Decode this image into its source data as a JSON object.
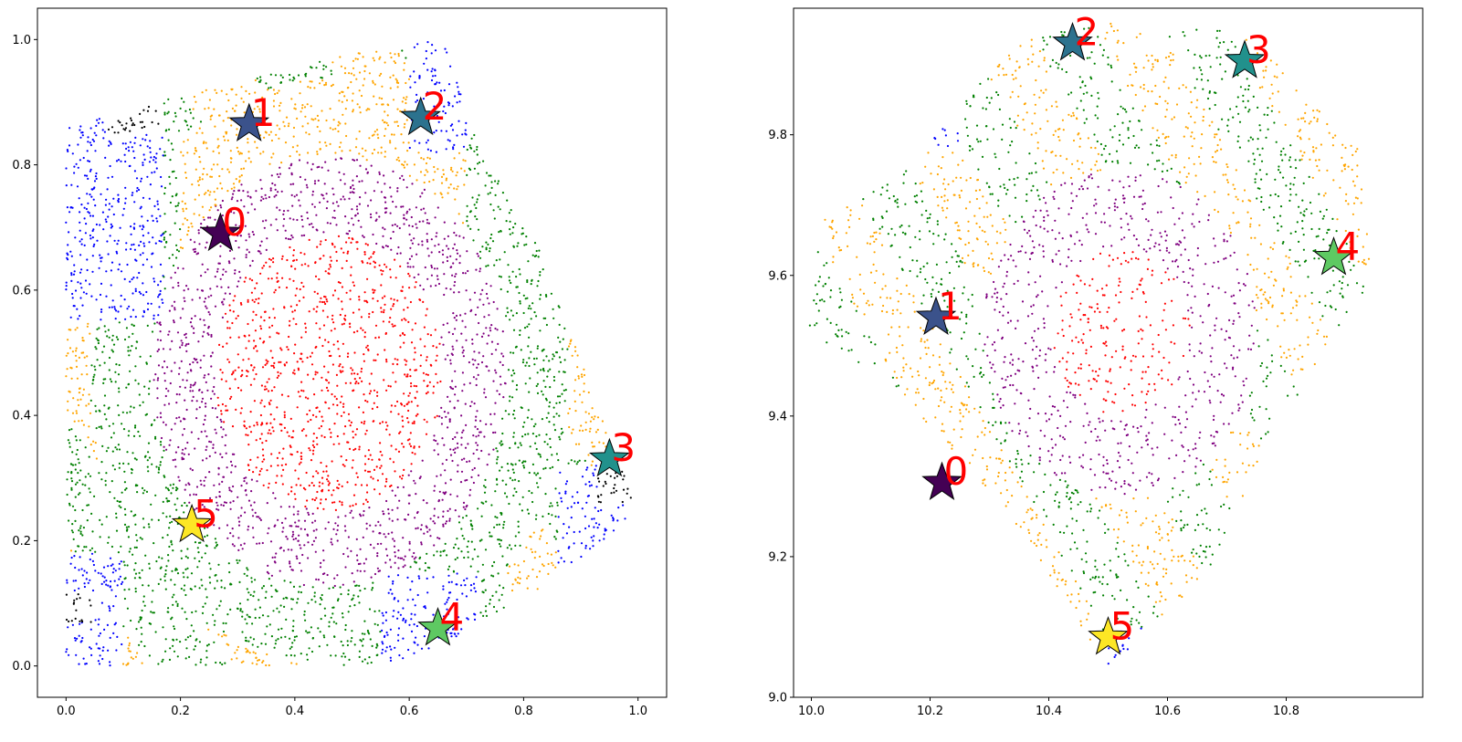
{
  "chart_data": [
    {
      "type": "scatter",
      "title": "",
      "xlabel": "",
      "ylabel": "",
      "xlim": [
        -0.05,
        1.05
      ],
      "ylim": [
        -0.05,
        1.05
      ],
      "xticks": [
        0.0,
        0.2,
        0.4,
        0.6,
        0.8,
        1.0
      ],
      "yticks": [
        0.0,
        0.2,
        0.4,
        0.6,
        0.8,
        1.0
      ],
      "xtick_labels": [
        "0.0",
        "0.2",
        "0.4",
        "0.6",
        "0.8",
        "1.0"
      ],
      "ytick_labels": [
        "0.0",
        "0.2",
        "0.4",
        "0.6",
        "0.8",
        "1.0"
      ],
      "grid": false,
      "point_colors": [
        "#ff0000",
        "#800080",
        "#ffa500",
        "#008000",
        "#0000ff",
        "#000000"
      ],
      "stars": [
        {
          "label": "0",
          "x": 0.27,
          "y": 0.69,
          "color": "#440154"
        },
        {
          "label": "1",
          "x": 0.32,
          "y": 0.865,
          "color": "#3b528b"
        },
        {
          "label": "2",
          "x": 0.62,
          "y": 0.875,
          "color": "#2c728e"
        },
        {
          "label": "3",
          "x": 0.95,
          "y": 0.33,
          "color": "#21918c"
        },
        {
          "label": "4",
          "x": 0.65,
          "y": 0.06,
          "color": "#5ec962"
        },
        {
          "label": "5",
          "x": 0.22,
          "y": 0.225,
          "color": "#fde725"
        }
      ]
    },
    {
      "type": "scatter",
      "title": "",
      "xlabel": "",
      "ylabel": "",
      "xlim": [
        9.97,
        11.03
      ],
      "ylim": [
        9.0,
        9.98
      ],
      "xticks": [
        10.0,
        10.2,
        10.4,
        10.6,
        10.8
      ],
      "yticks": [
        9.0,
        9.2,
        9.4,
        9.6,
        9.8
      ],
      "xtick_labels": [
        "10.0",
        "10.2",
        "10.4",
        "10.6",
        "10.8"
      ],
      "ytick_labels": [
        "9.0",
        "9.2",
        "9.4",
        "9.6",
        "9.8"
      ],
      "grid": false,
      "point_colors": [
        "#ff0000",
        "#800080",
        "#ffa500",
        "#008000",
        "#0000ff"
      ],
      "stars": [
        {
          "label": "0",
          "x": 10.22,
          "y": 9.305,
          "color": "#440154"
        },
        {
          "label": "1",
          "x": 10.21,
          "y": 9.54,
          "color": "#3b528b"
        },
        {
          "label": "2",
          "x": 10.44,
          "y": 9.93,
          "color": "#2c728e"
        },
        {
          "label": "3",
          "x": 10.73,
          "y": 9.905,
          "color": "#21918c"
        },
        {
          "label": "4",
          "x": 10.88,
          "y": 9.625,
          "color": "#5ec962"
        },
        {
          "label": "5",
          "x": 10.5,
          "y": 9.085,
          "color": "#fde725"
        }
      ]
    }
  ]
}
